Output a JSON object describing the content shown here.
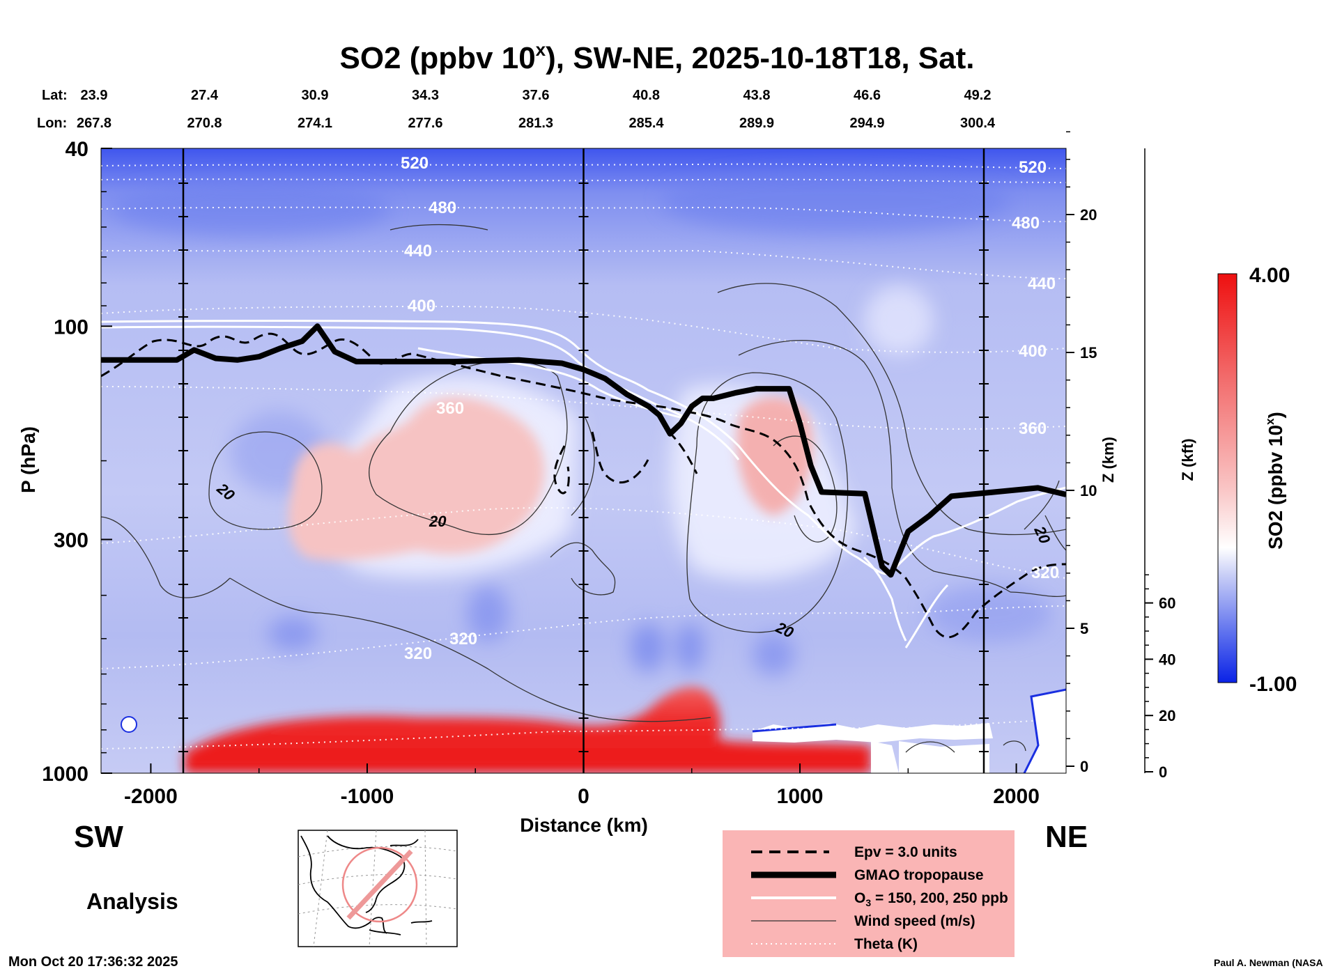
{
  "chart_data": {
    "type": "heatmap",
    "title_main": "SO2 (ppbv 10",
    "title_sup": "x",
    "title_rest": "), SW-NE, 2025-10-18T18, Sat.",
    "lat_label": "Lat:",
    "lon_label": "Lon:",
    "lat_ticks": [
      "23.9",
      "27.4",
      "30.9",
      "34.3",
      "37.6",
      "40.8",
      "43.8",
      "46.6",
      "49.2"
    ],
    "lon_ticks": [
      "267.8",
      "270.8",
      "274.1",
      "277.6",
      "281.3",
      "285.4",
      "289.9",
      "294.9",
      "300.4"
    ],
    "xlabel": "Distance (km)",
    "xlim": [
      -2230,
      2230
    ],
    "x_ticks": [
      -2000,
      -1000,
      0,
      1000,
      2000
    ],
    "x_tick_labels": [
      "-2000",
      "-1000",
      "0",
      "1000",
      "2000"
    ],
    "ylabel": "P (hPa)",
    "ylim": [
      1000,
      40
    ],
    "y_ticks": [
      40,
      100,
      300,
      1000
    ],
    "y_tick_labels": [
      "40",
      "100",
      "300",
      "1000"
    ],
    "z_km_label": "Z (km)",
    "z_km_ticks": [
      0,
      5,
      10,
      15,
      20
    ],
    "z_km_tick_labels": [
      "0",
      "5",
      "10",
      "15",
      "20"
    ],
    "z_kft_label": "Z (kft)",
    "z_kft_ticks": [
      0,
      20,
      40,
      60
    ],
    "z_kft_tick_labels": [
      "0",
      "20",
      "40",
      "60"
    ],
    "colorbar": {
      "label_main": "SO2 (ppbv 10",
      "label_sup": "x",
      "label_rest": ")",
      "max_label": "4.00",
      "min_label": "-1.00",
      "range": [
        -1.0,
        4.0
      ]
    },
    "theta_labels": [
      "520",
      "480",
      "440",
      "400",
      "360",
      "320",
      "320",
      "520",
      "480",
      "440",
      "400",
      "360",
      "320"
    ],
    "wind_labels": [
      "20",
      "20",
      "20",
      "20"
    ],
    "vertical_lines_km": [
      -1850,
      0,
      1850
    ],
    "tropopause_hPa": [
      [
        -2230,
        119
      ],
      [
        -1880,
        119
      ],
      [
        -1800,
        113
      ],
      [
        -1700,
        118
      ],
      [
        -1600,
        119
      ],
      [
        -1500,
        117
      ],
      [
        -1400,
        112
      ],
      [
        -1300,
        108
      ],
      [
        -1230,
        100
      ],
      [
        -1150,
        114
      ],
      [
        -1050,
        120
      ],
      [
        -900,
        120
      ],
      [
        -600,
        120
      ],
      [
        -300,
        119
      ],
      [
        -100,
        121
      ],
      [
        0,
        125
      ],
      [
        100,
        131
      ],
      [
        200,
        142
      ],
      [
        300,
        151
      ],
      [
        350,
        158
      ],
      [
        400,
        174
      ],
      [
        450,
        165
      ],
      [
        500,
        151
      ],
      [
        550,
        145
      ],
      [
        600,
        145
      ],
      [
        700,
        141
      ],
      [
        800,
        138
      ],
      [
        950,
        138
      ],
      [
        1000,
        165
      ],
      [
        1050,
        205
      ],
      [
        1100,
        235
      ],
      [
        1300,
        237
      ],
      [
        1350,
        300
      ],
      [
        1380,
        345
      ],
      [
        1420,
        360
      ],
      [
        1500,
        288
      ],
      [
        1600,
        265
      ],
      [
        1700,
        240
      ],
      [
        1900,
        235
      ],
      [
        2100,
        230
      ],
      [
        2230,
        238
      ]
    ],
    "legend": [
      {
        "label": "Epv = 3.0 units",
        "style": "dashed"
      },
      {
        "label": "GMAO tropopause",
        "style": "thick"
      },
      {
        "label": "O",
        "sub": "3",
        "rest": " = 150, 200, 250 ppb",
        "style": "white"
      },
      {
        "label": "Wind speed (m/s)",
        "style": "thin"
      },
      {
        "label": "Theta (K)",
        "style": "dotted"
      }
    ],
    "colors": {
      "background_blue": "#b6bdf2",
      "deep_blue": "#1f3ae6",
      "pale": "#eceeff",
      "pink": "#f7c4c4",
      "red": "#ee1c1c",
      "legend_bg": "#fab5b5"
    }
  },
  "annotations": {
    "sw": "SW",
    "ne": "NE",
    "analysis": "Analysis",
    "timestamp": "Mon Oct 20 17:36:32 2025",
    "credit": "Paul A. Newman (NASA"
  }
}
